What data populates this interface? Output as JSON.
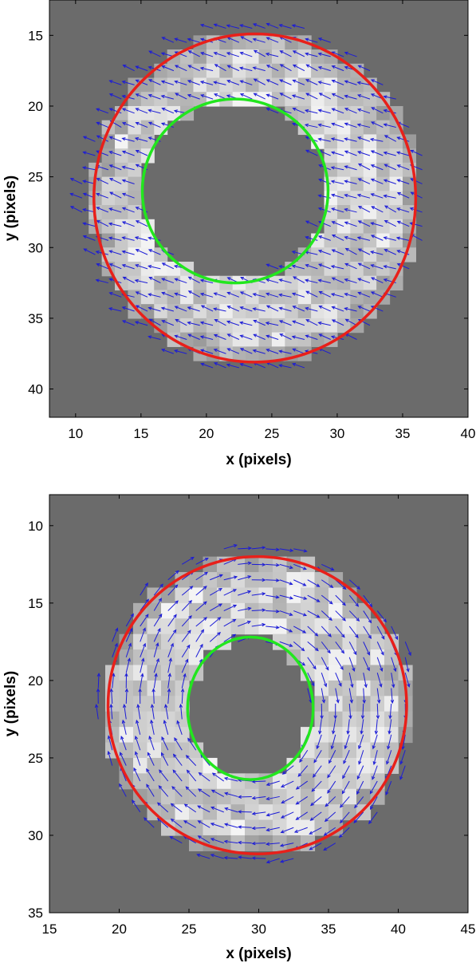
{
  "chart_data": [
    {
      "type": "image-overlay",
      "xlabel": "x (pixels)",
      "ylabel": "y (pixels)",
      "xlim": [
        8,
        40
      ],
      "ylim": [
        42,
        12.5
      ],
      "y_reversed": true,
      "xticks": [
        10,
        15,
        20,
        25,
        30,
        35,
        40
      ],
      "yticks": [
        15,
        20,
        25,
        30,
        35,
        40
      ],
      "background_color": "#6b6b6b",
      "outer_circle": {
        "color": "#e8201a",
        "cx": 23.7,
        "cy": 26.5,
        "rx": 12.3,
        "ry": 11.6
      },
      "inner_circle": {
        "color": "#22e61e",
        "cx": 22.2,
        "cy": 26.0,
        "rx": 7.1,
        "ry": 6.5
      },
      "vector_field": {
        "color": "#1c1cd6",
        "pattern": "diagonal flow toward upper-left"
      }
    },
    {
      "type": "image-overlay",
      "xlabel": "x (pixels)",
      "ylabel": "y (pixels)",
      "xlim": [
        15,
        45
      ],
      "ylim": [
        35,
        8
      ],
      "y_reversed": true,
      "xticks": [
        15,
        20,
        25,
        30,
        35,
        40,
        45
      ],
      "yticks": [
        10,
        15,
        20,
        25,
        30,
        35
      ],
      "background_color": "#6b6b6b",
      "outer_circle": {
        "color": "#e8201a",
        "cx": 29.9,
        "cy": 21.6,
        "rx": 10.7,
        "ry": 9.6
      },
      "inner_circle": {
        "color": "#22e61e",
        "cx": 29.4,
        "cy": 21.8,
        "rx": 4.5,
        "ry": 4.6
      },
      "vector_field": {
        "color": "#1c1cd6",
        "pattern": "swirl around center"
      }
    }
  ]
}
